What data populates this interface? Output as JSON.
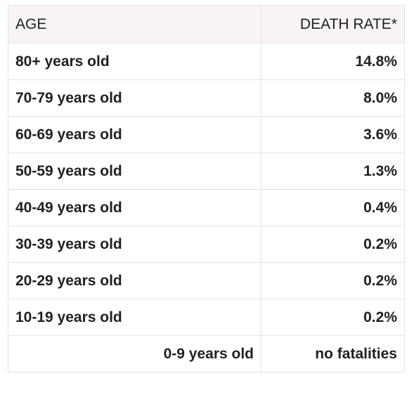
{
  "table": {
    "headers": {
      "age": "AGE",
      "rate": "DEATH RATE*"
    },
    "rows": [
      {
        "age": "80+ years old",
        "rate": "14.8%"
      },
      {
        "age": "70-79 years old",
        "rate": "8.0%"
      },
      {
        "age": "60-69 years old",
        "rate": "3.6%"
      },
      {
        "age": "50-59 years old",
        "rate": "1.3%"
      },
      {
        "age": "40-49 years old",
        "rate": "0.4%"
      },
      {
        "age": "30-39 years old",
        "rate": "0.2%"
      },
      {
        "age": "20-29 years old",
        "rate": "0.2%"
      },
      {
        "age": "10-19 years old",
        "rate": "0.2%"
      },
      {
        "age": "0-9 years old",
        "rate": "no fatalities"
      }
    ]
  }
}
